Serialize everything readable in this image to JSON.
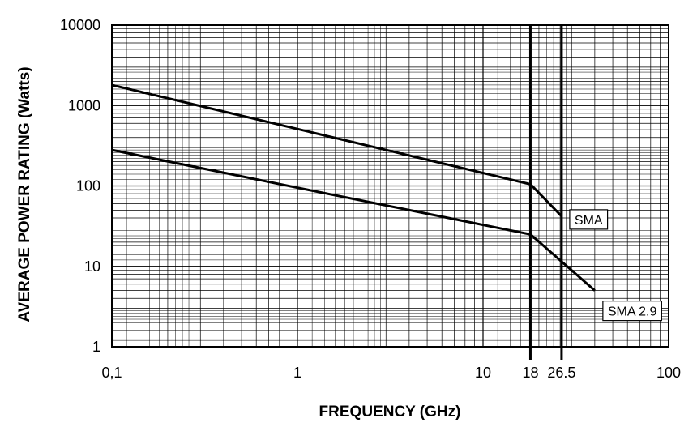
{
  "chart_data": {
    "type": "line",
    "x_scale": "log",
    "y_scale": "log",
    "xlim": [
      0.1,
      100
    ],
    "ylim": [
      1,
      10000
    ],
    "grid": true,
    "xlabel": "FREQUENCY (GHz)",
    "ylabel": "AVERAGE POWER RATING (Watts)",
    "x_ticks": [
      {
        "value": 0.1,
        "label": "0,1"
      },
      {
        "value": 1,
        "label": "1"
      },
      {
        "value": 10,
        "label": "10"
      },
      {
        "value": 18,
        "label": "18"
      },
      {
        "value": 26.5,
        "label": "26.5"
      },
      {
        "value": 100,
        "label": "100"
      }
    ],
    "y_ticks": [
      {
        "value": 1,
        "label": "1"
      },
      {
        "value": 10,
        "label": "10"
      },
      {
        "value": 100,
        "label": "100"
      },
      {
        "value": 1000,
        "label": "1000"
      },
      {
        "value": 10000,
        "label": "10000"
      }
    ],
    "reference_lines_x": [
      18,
      26.5
    ],
    "series": [
      {
        "name": "SMA",
        "points": [
          [
            0.1,
            1800
          ],
          [
            18,
            105
          ],
          [
            26.5,
            42
          ]
        ]
      },
      {
        "name": "SMA 2.9",
        "points": [
          [
            0.1,
            280
          ],
          [
            1,
            95
          ],
          [
            18,
            25
          ],
          [
            40,
            5
          ]
        ]
      }
    ]
  }
}
